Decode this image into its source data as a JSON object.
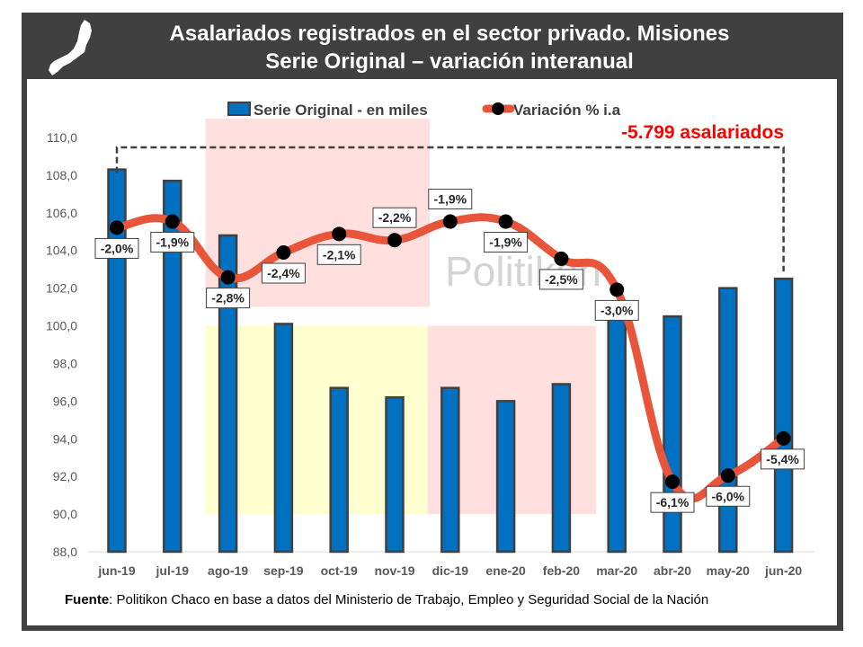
{
  "header": {
    "title_line1": "Asalariados registrados en el sector privado. Misiones",
    "title_line2": "Serie Original – variación interanual",
    "logo_icon": "misiones-province-map-icon"
  },
  "annotation": {
    "text": "-5.799 asalariados",
    "color": "#ff0000"
  },
  "watermark": "Politikon",
  "source": {
    "label": "Fuente",
    "text": ": Politikon Chaco en base a datos del Ministerio de Trabajo, Empleo y Seguridad Social de la Nación"
  },
  "colors": {
    "bar": "#0070c0",
    "bar_outline": "#404040",
    "line": "#e8553a",
    "marker": "#000000",
    "frame": "#404040",
    "shade_red": "#ffe0de",
    "shade_yellow": "#ffffd0"
  },
  "chart_data": {
    "type": "bar",
    "title": "Asalariados registrados en el sector privado. Misiones — Serie Original – variación interanual",
    "xlabel": "",
    "ylabel": "",
    "ylim": [
      88,
      110
    ],
    "yticks": [
      "88,0",
      "90,0",
      "92,0",
      "94,0",
      "96,0",
      "98,0",
      "100,0",
      "102,0",
      "104,0",
      "106,0",
      "108,0",
      "110,0"
    ],
    "ytick_values": [
      88,
      90,
      92,
      94,
      96,
      98,
      100,
      102,
      104,
      106,
      108,
      110
    ],
    "grid": false,
    "legend_position": "top",
    "categories": [
      "jun-19",
      "jul-19",
      "ago-19",
      "sep-19",
      "oct-19",
      "nov-19",
      "dic-19",
      "ene-20",
      "feb-20",
      "mar-20",
      "abr-20",
      "may-20",
      "jun-20"
    ],
    "series": [
      {
        "name": "Serie Original - en miles",
        "type": "bar",
        "axis": "left",
        "values": [
          108.3,
          107.7,
          104.8,
          100.1,
          96.7,
          96.2,
          96.7,
          96.0,
          96.9,
          100.4,
          100.5,
          102.0,
          102.5
        ]
      },
      {
        "name": "Variación % i.a",
        "type": "line",
        "axis": "secondary (hidden)",
        "values": [
          -2.0,
          -1.9,
          -2.8,
          -2.4,
          -2.1,
          -2.2,
          -1.9,
          -1.9,
          -2.5,
          -3.0,
          -6.1,
          -6.0,
          -5.4
        ],
        "labels": [
          "-2,0%",
          "-1,9%",
          "-2,8%",
          "-2,4%",
          "-2,1%",
          "-2,2%",
          "-1,9%",
          "-1,9%",
          "-2,5%",
          "-3,0%",
          "-6,1%",
          "-6,0%",
          "-5,4%"
        ]
      }
    ],
    "annotations": [
      {
        "text": "-5.799 asalariados",
        "from": "jun-19",
        "to": "jun-20",
        "style": "dashed bracket"
      }
    ],
    "shaded_regions": [
      {
        "color": "red",
        "from": "ago-19",
        "to": "nov-19",
        "y_range": [
          101,
          111
        ]
      },
      {
        "color": "yellow",
        "from": "ago-19",
        "to": "nov-19",
        "y_range": [
          90,
          100
        ]
      },
      {
        "color": "red",
        "from": "dic-19",
        "to": "feb-20",
        "y_range": [
          90,
          100
        ]
      }
    ]
  }
}
